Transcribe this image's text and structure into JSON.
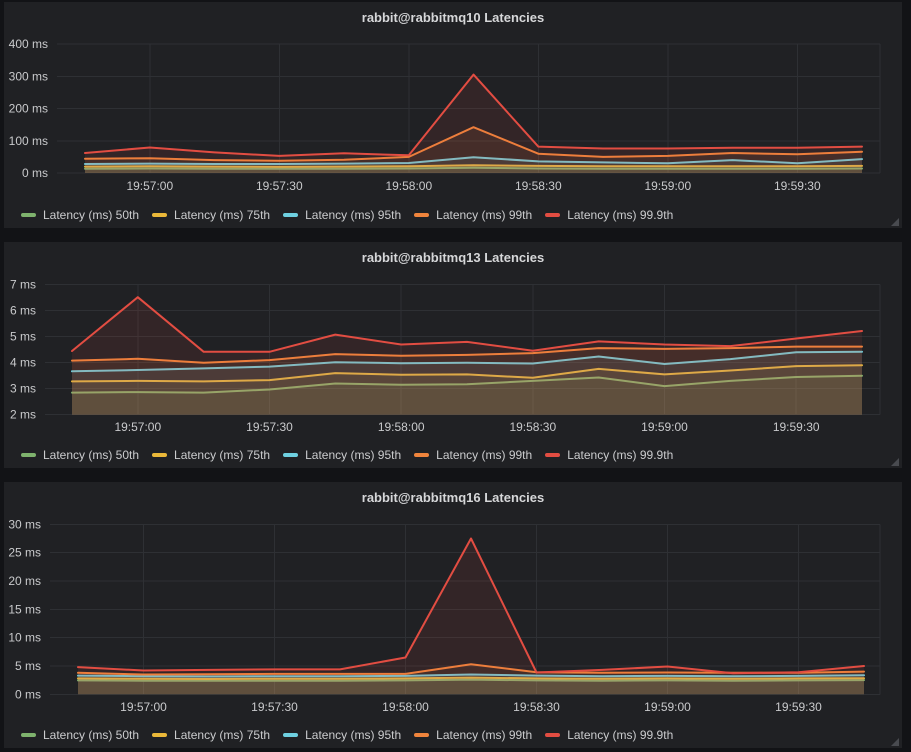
{
  "colors": {
    "page_background": "#121316",
    "panel_background": "#202124",
    "grid": "#2e3034",
    "axis_text": "#c9cacc",
    "title_text": "#d6d7d9",
    "series_green": "#7EB26D",
    "series_yellow": "#EAB839",
    "series_cyan": "#6ED0E0",
    "series_orange": "#EF843C",
    "series_red": "#E24D42"
  },
  "chart_data": [
    {
      "type": "area",
      "title": "rabbit@rabbitmq10 Latencies",
      "y_unit": "ms",
      "ylim": [
        0,
        400
      ],
      "grid": true,
      "legend_position": "bottom",
      "y_ticks": [
        {
          "value": 0,
          "label": "0 ms"
        },
        {
          "value": 100,
          "label": "100 ms"
        },
        {
          "value": 200,
          "label": "200 ms"
        },
        {
          "value": 300,
          "label": "300 ms"
        },
        {
          "value": 400,
          "label": "400 ms"
        }
      ],
      "x_ticks": [
        "19:57:00",
        "19:57:30",
        "19:58:00",
        "19:58:30",
        "19:59:00",
        "19:59:30"
      ],
      "series": [
        {
          "name": "Latency (ms) 50th",
          "color": "#7EB26D",
          "values": [
            13,
            14,
            13,
            13,
            13,
            14,
            16,
            14,
            13,
            13,
            13,
            13,
            14
          ]
        },
        {
          "name": "Latency (ms) 75th",
          "color": "#EAB839",
          "values": [
            20,
            21,
            20,
            19,
            20,
            21,
            24,
            22,
            21,
            21,
            21,
            21,
            22
          ]
        },
        {
          "name": "Latency (ms) 95th",
          "color": "#6ED0E0",
          "values": [
            28,
            29,
            28,
            28,
            29,
            31,
            49,
            36,
            33,
            30,
            40,
            30,
            43
          ]
        },
        {
          "name": "Latency (ms) 99th",
          "color": "#EF843C",
          "values": [
            44,
            46,
            40,
            38,
            41,
            50,
            142,
            60,
            50,
            53,
            62,
            58,
            66
          ]
        },
        {
          "name": "Latency (ms) 99.9th",
          "color": "#E24D42",
          "values": [
            62,
            79,
            64,
            53,
            61,
            55,
            305,
            82,
            76,
            76,
            78,
            78,
            82
          ]
        }
      ]
    },
    {
      "type": "area",
      "title": "rabbit@rabbitmq13 Latencies",
      "y_unit": "ms",
      "ylim": [
        2,
        7
      ],
      "grid": true,
      "legend_position": "bottom",
      "y_ticks": [
        {
          "value": 2,
          "label": "2 ms"
        },
        {
          "value": 3,
          "label": "3 ms"
        },
        {
          "value": 4,
          "label": "4 ms"
        },
        {
          "value": 5,
          "label": "5 ms"
        },
        {
          "value": 6,
          "label": "6 ms"
        },
        {
          "value": 7,
          "label": "7 ms"
        }
      ],
      "x_ticks": [
        "19:57:00",
        "19:57:30",
        "19:58:00",
        "19:58:30",
        "19:59:00",
        "19:59:30"
      ],
      "series": [
        {
          "name": "Latency (ms) 50th",
          "color": "#7EB26D",
          "values": [
            2.85,
            2.87,
            2.85,
            2.97,
            3.2,
            3.15,
            3.17,
            3.3,
            3.43,
            3.1,
            3.3,
            3.45,
            3.5
          ]
        },
        {
          "name": "Latency (ms) 75th",
          "color": "#EAB839",
          "values": [
            3.28,
            3.3,
            3.28,
            3.33,
            3.6,
            3.54,
            3.55,
            3.42,
            3.76,
            3.55,
            3.7,
            3.87,
            3.9
          ]
        },
        {
          "name": "Latency (ms) 95th",
          "color": "#6ED0E0",
          "values": [
            3.67,
            3.72,
            3.78,
            3.85,
            4.02,
            3.98,
            4.0,
            3.97,
            4.24,
            3.95,
            4.14,
            4.4,
            4.42
          ]
        },
        {
          "name": "Latency (ms) 99th",
          "color": "#EF843C",
          "values": [
            4.08,
            4.15,
            4.0,
            4.1,
            4.33,
            4.27,
            4.3,
            4.37,
            4.56,
            4.53,
            4.56,
            4.62,
            4.62
          ]
        },
        {
          "name": "Latency (ms) 99.9th",
          "color": "#E24D42",
          "values": [
            4.45,
            6.52,
            4.42,
            4.42,
            5.08,
            4.7,
            4.8,
            4.46,
            4.82,
            4.7,
            4.64,
            4.93,
            5.22
          ]
        }
      ]
    },
    {
      "type": "area",
      "title": "rabbit@rabbitmq16 Latencies",
      "y_unit": "ms",
      "ylim": [
        0,
        30
      ],
      "grid": true,
      "legend_position": "bottom",
      "y_ticks": [
        {
          "value": 0,
          "label": "0 ms"
        },
        {
          "value": 5,
          "label": "5 ms"
        },
        {
          "value": 10,
          "label": "10 ms"
        },
        {
          "value": 15,
          "label": "15 ms"
        },
        {
          "value": 20,
          "label": "20 ms"
        },
        {
          "value": 25,
          "label": "25 ms"
        },
        {
          "value": 30,
          "label": "30 ms"
        }
      ],
      "x_ticks": [
        "19:57:00",
        "19:57:30",
        "19:58:00",
        "19:58:30",
        "19:59:00",
        "19:59:30"
      ],
      "series": [
        {
          "name": "Latency (ms) 50th",
          "color": "#7EB26D",
          "values": [
            2.45,
            2.4,
            2.4,
            2.4,
            2.4,
            2.45,
            2.6,
            2.45,
            2.4,
            2.45,
            2.4,
            2.45,
            2.5
          ]
        },
        {
          "name": "Latency (ms) 75th",
          "color": "#EAB839",
          "values": [
            2.8,
            2.75,
            2.7,
            2.75,
            2.75,
            2.8,
            2.95,
            2.8,
            2.75,
            2.8,
            2.75,
            2.8,
            2.85
          ]
        },
        {
          "name": "Latency (ms) 95th",
          "color": "#6ED0E0",
          "values": [
            3.3,
            3.2,
            3.15,
            3.2,
            3.2,
            3.25,
            3.5,
            3.3,
            3.2,
            3.25,
            3.2,
            3.25,
            3.35
          ]
        },
        {
          "name": "Latency (ms) 99th",
          "color": "#EF843C",
          "values": [
            3.8,
            3.5,
            3.55,
            3.6,
            3.6,
            3.6,
            5.3,
            3.9,
            3.8,
            3.85,
            3.8,
            3.8,
            4.0
          ]
        },
        {
          "name": "Latency (ms) 99.9th",
          "color": "#E24D42",
          "values": [
            4.8,
            4.2,
            4.3,
            4.4,
            4.4,
            6.5,
            27.5,
            3.85,
            4.3,
            4.9,
            3.7,
            3.9,
            5.0
          ]
        }
      ]
    }
  ]
}
